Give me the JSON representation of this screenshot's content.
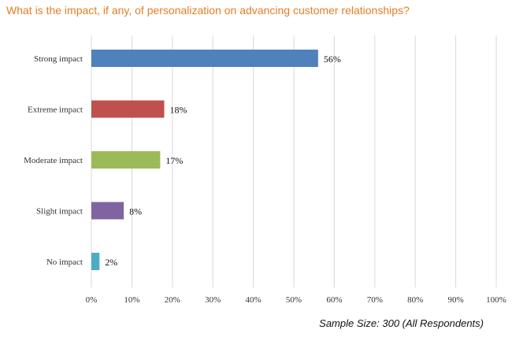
{
  "chart_data": {
    "type": "bar",
    "orientation": "horizontal",
    "title": "What is the impact, if any, of personalization on advancing customer relationships?",
    "categories": [
      "Strong impact",
      "Extreme impact",
      "Moderate impact",
      "Slight impact",
      "No impact"
    ],
    "values": [
      56,
      18,
      17,
      8,
      2
    ],
    "value_labels": [
      "56%",
      "18%",
      "17%",
      "8%",
      "2%"
    ],
    "colors": [
      "#4f81bd",
      "#c0504d",
      "#9bbb59",
      "#8064a2",
      "#4bacc6"
    ],
    "xlim": [
      0,
      100
    ],
    "x_ticks": [
      0,
      10,
      20,
      30,
      40,
      50,
      60,
      70,
      80,
      90,
      100
    ],
    "x_tick_labels": [
      "0%",
      "10%",
      "20%",
      "30%",
      "40%",
      "50%",
      "60%",
      "70%",
      "80%",
      "90%",
      "100%"
    ],
    "grid": "vertical",
    "legend": "none",
    "footnote": "Sample Size: 300 (All Respondents)"
  }
}
